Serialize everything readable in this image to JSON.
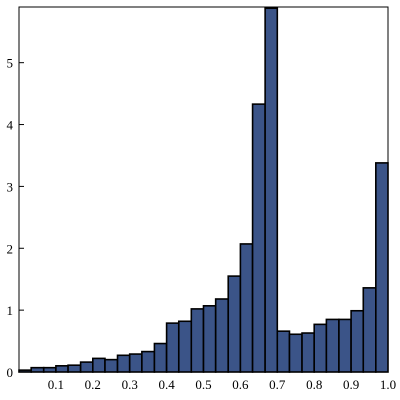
{
  "chart_data": {
    "type": "bar",
    "title": "",
    "xlabel": "",
    "ylabel": "",
    "xlim": [
      0.0,
      1.0
    ],
    "ylim": [
      0,
      5.9
    ],
    "bin_width": 0.0333,
    "bar_color": "#3b5488",
    "x_ticks": [
      {
        "value": 0.1,
        "label": "0.1"
      },
      {
        "value": 0.2,
        "label": "0.2"
      },
      {
        "value": 0.3,
        "label": "0.3"
      },
      {
        "value": 0.4,
        "label": "0.4"
      },
      {
        "value": 0.5,
        "label": "0.5"
      },
      {
        "value": 0.6,
        "label": "0.6"
      },
      {
        "value": 0.7,
        "label": "0.7"
      },
      {
        "value": 0.8,
        "label": "0.8"
      },
      {
        "value": 0.9,
        "label": "0.9"
      },
      {
        "value": 1.0,
        "label": "1.0"
      }
    ],
    "y_ticks": [
      {
        "value": 0,
        "label": "0"
      },
      {
        "value": 1,
        "label": "1"
      },
      {
        "value": 2,
        "label": "2"
      },
      {
        "value": 3,
        "label": "3"
      },
      {
        "value": 4,
        "label": "4"
      },
      {
        "value": 5,
        "label": "5"
      }
    ],
    "bins": [
      {
        "x0": 0.0,
        "x1": 0.033,
        "value": 0.03
      },
      {
        "x0": 0.033,
        "x1": 0.067,
        "value": 0.07
      },
      {
        "x0": 0.067,
        "x1": 0.1,
        "value": 0.07
      },
      {
        "x0": 0.1,
        "x1": 0.133,
        "value": 0.1
      },
      {
        "x0": 0.133,
        "x1": 0.167,
        "value": 0.11
      },
      {
        "x0": 0.167,
        "x1": 0.2,
        "value": 0.16
      },
      {
        "x0": 0.2,
        "x1": 0.233,
        "value": 0.22
      },
      {
        "x0": 0.233,
        "x1": 0.267,
        "value": 0.2
      },
      {
        "x0": 0.267,
        "x1": 0.3,
        "value": 0.27
      },
      {
        "x0": 0.3,
        "x1": 0.333,
        "value": 0.29
      },
      {
        "x0": 0.333,
        "x1": 0.367,
        "value": 0.33
      },
      {
        "x0": 0.367,
        "x1": 0.4,
        "value": 0.46
      },
      {
        "x0": 0.4,
        "x1": 0.433,
        "value": 0.79
      },
      {
        "x0": 0.433,
        "x1": 0.467,
        "value": 0.82
      },
      {
        "x0": 0.467,
        "x1": 0.5,
        "value": 1.02
      },
      {
        "x0": 0.5,
        "x1": 0.533,
        "value": 1.07
      },
      {
        "x0": 0.533,
        "x1": 0.567,
        "value": 1.18
      },
      {
        "x0": 0.567,
        "x1": 0.6,
        "value": 1.55
      },
      {
        "x0": 0.6,
        "x1": 0.633,
        "value": 2.07
      },
      {
        "x0": 0.633,
        "x1": 0.667,
        "value": 4.33
      },
      {
        "x0": 0.667,
        "x1": 0.7,
        "value": 5.88
      },
      {
        "x0": 0.7,
        "x1": 0.733,
        "value": 0.66
      },
      {
        "x0": 0.733,
        "x1": 0.767,
        "value": 0.61
      },
      {
        "x0": 0.767,
        "x1": 0.8,
        "value": 0.63
      },
      {
        "x0": 0.8,
        "x1": 0.833,
        "value": 0.77
      },
      {
        "x0": 0.833,
        "x1": 0.867,
        "value": 0.85
      },
      {
        "x0": 0.867,
        "x1": 0.9,
        "value": 0.85
      },
      {
        "x0": 0.9,
        "x1": 0.933,
        "value": 0.99
      },
      {
        "x0": 0.933,
        "x1": 0.967,
        "value": 1.36
      },
      {
        "x0": 0.967,
        "x1": 1.0,
        "value": 3.38
      }
    ],
    "grid": false,
    "legend": "none"
  }
}
